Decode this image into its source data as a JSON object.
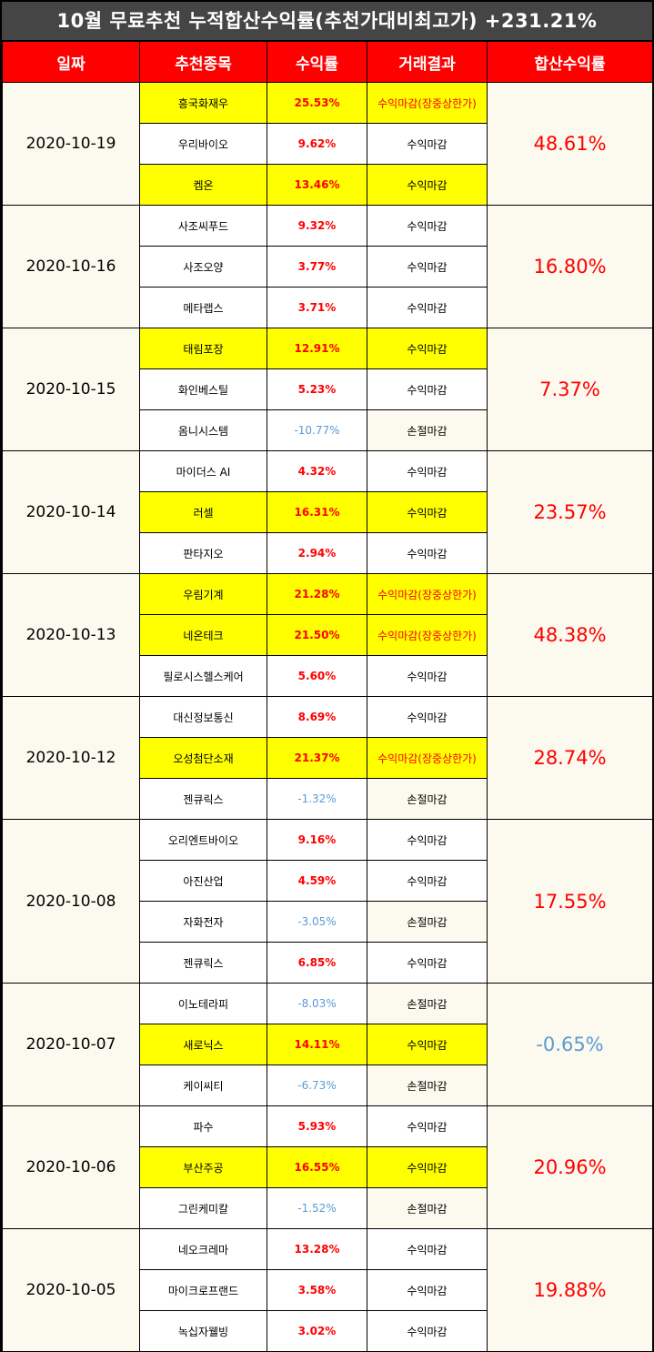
{
  "title": "10월 무료추천 누적합산수익률(추천가대비최고가) +231.21%",
  "headers": [
    "일짜",
    "추천종목",
    "수익률",
    "거래결과",
    "합산수익률"
  ],
  "groups": [
    {
      "date": "2020-10-19",
      "total": "48.61%",
      "total_negative": false,
      "rows": [
        {
          "name": "흥국화재우",
          "pct": "25.53%",
          "result": "수익마감(장중상한가)",
          "highlight": true,
          "negative": false,
          "result_red": true
        },
        {
          "name": "우리바이오",
          "pct": "9.62%",
          "result": "수익마감",
          "highlight": false,
          "negative": false,
          "result_red": false
        },
        {
          "name": "켐온",
          "pct": "13.46%",
          "result": "수익마감",
          "highlight": true,
          "negative": false,
          "result_red": false
        }
      ]
    },
    {
      "date": "2020-10-16",
      "total": "16.80%",
      "total_negative": false,
      "rows": [
        {
          "name": "사조씨푸드",
          "pct": "9.32%",
          "result": "수익마감",
          "highlight": false,
          "negative": false,
          "result_red": false
        },
        {
          "name": "사조오양",
          "pct": "3.77%",
          "result": "수익마감",
          "highlight": false,
          "negative": false,
          "result_red": false
        },
        {
          "name": "메타랩스",
          "pct": "3.71%",
          "result": "수익마감",
          "highlight": false,
          "negative": false,
          "result_red": false
        }
      ]
    },
    {
      "date": "2020-10-15",
      "total": "7.37%",
      "total_negative": false,
      "rows": [
        {
          "name": "태림포장",
          "pct": "12.91%",
          "result": "수익마감",
          "highlight": true,
          "negative": false,
          "result_red": false
        },
        {
          "name": "화인베스틸",
          "pct": "5.23%",
          "result": "수익마감",
          "highlight": false,
          "negative": false,
          "result_red": false
        },
        {
          "name": "옴니시스템",
          "pct": "-10.77%",
          "result": "손절마감",
          "highlight": false,
          "negative": true,
          "result_red": false
        }
      ]
    },
    {
      "date": "2020-10-14",
      "total": "23.57%",
      "total_negative": false,
      "rows": [
        {
          "name": "마이더스 AI",
          "pct": "4.32%",
          "result": "수익마감",
          "highlight": false,
          "negative": false,
          "result_red": false
        },
        {
          "name": "러셀",
          "pct": "16.31%",
          "result": "수익마감",
          "highlight": true,
          "negative": false,
          "result_red": false
        },
        {
          "name": "판타지오",
          "pct": "2.94%",
          "result": "수익마감",
          "highlight": false,
          "negative": false,
          "result_red": false
        }
      ]
    },
    {
      "date": "2020-10-13",
      "total": "48.38%",
      "total_negative": false,
      "rows": [
        {
          "name": "우림기계",
          "pct": "21.28%",
          "result": "수익마감(장중상한가)",
          "highlight": true,
          "negative": false,
          "result_red": true
        },
        {
          "name": "네온테크",
          "pct": "21.50%",
          "result": "수익마감(장중상한가)",
          "highlight": true,
          "negative": false,
          "result_red": true
        },
        {
          "name": "필로시스헬스케어",
          "pct": "5.60%",
          "result": "수익마감",
          "highlight": false,
          "negative": false,
          "result_red": false
        }
      ]
    },
    {
      "date": "2020-10-12",
      "total": "28.74%",
      "total_negative": false,
      "rows": [
        {
          "name": "대신정보통신",
          "pct": "8.69%",
          "result": "수익마감",
          "highlight": false,
          "negative": false,
          "result_red": false
        },
        {
          "name": "오성첨단소재",
          "pct": "21.37%",
          "result": "수익마감(장중상한가)",
          "highlight": true,
          "negative": false,
          "result_red": true
        },
        {
          "name": "젠큐릭스",
          "pct": "-1.32%",
          "result": "손절마감",
          "highlight": false,
          "negative": true,
          "result_red": false
        }
      ]
    },
    {
      "date": "2020-10-08",
      "total": "17.55%",
      "total_negative": false,
      "rows": [
        {
          "name": "오리엔트바이오",
          "pct": "9.16%",
          "result": "수익마감",
          "highlight": false,
          "negative": false,
          "result_red": false
        },
        {
          "name": "아진산업",
          "pct": "4.59%",
          "result": "수익마감",
          "highlight": false,
          "negative": false,
          "result_red": false
        },
        {
          "name": "자화전자",
          "pct": "-3.05%",
          "result": "손절마감",
          "highlight": false,
          "negative": true,
          "result_red": false
        },
        {
          "name": "젠큐릭스",
          "pct": "6.85%",
          "result": "수익마감",
          "highlight": false,
          "negative": false,
          "result_red": false
        }
      ]
    },
    {
      "date": "2020-10-07",
      "total": "-0.65%",
      "total_negative": true,
      "rows": [
        {
          "name": "이노테라피",
          "pct": "-8.03%",
          "result": "손절마감",
          "highlight": false,
          "negative": true,
          "result_red": false
        },
        {
          "name": "새로닉스",
          "pct": "14.11%",
          "result": "수익마감",
          "highlight": true,
          "negative": false,
          "result_red": false
        },
        {
          "name": "케이씨티",
          "pct": "-6.73%",
          "result": "손절마감",
          "highlight": false,
          "negative": true,
          "result_red": false
        }
      ]
    },
    {
      "date": "2020-10-06",
      "total": "20.96%",
      "total_negative": false,
      "rows": [
        {
          "name": "파수",
          "pct": "5.93%",
          "result": "수익마감",
          "highlight": false,
          "negative": false,
          "result_red": false
        },
        {
          "name": "부산주공",
          "pct": "16.55%",
          "result": "수익마감",
          "highlight": true,
          "negative": false,
          "result_red": false
        },
        {
          "name": "그린케미칼",
          "pct": "-1.52%",
          "result": "손절마감",
          "highlight": false,
          "negative": true,
          "result_red": false
        }
      ]
    },
    {
      "date": "2020-10-05",
      "total": "19.88%",
      "total_negative": false,
      "rows": [
        {
          "name": "네오크레마",
          "pct": "13.28%",
          "result": "수익마감",
          "highlight": false,
          "negative": false,
          "result_red": false
        },
        {
          "name": "마이크로프랜드",
          "pct": "3.58%",
          "result": "수익마감",
          "highlight": false,
          "negative": false,
          "result_red": false
        },
        {
          "name": "녹십자웰빙",
          "pct": "3.02%",
          "result": "수익마감",
          "highlight": false,
          "negative": false,
          "result_red": false
        }
      ]
    }
  ],
  "colors": {
    "header_bg": "#ff0000",
    "highlight": "#ffff00",
    "positive": "#ff0000",
    "negative": "#5b9bd5",
    "date_bg": "#fcf9ee"
  }
}
